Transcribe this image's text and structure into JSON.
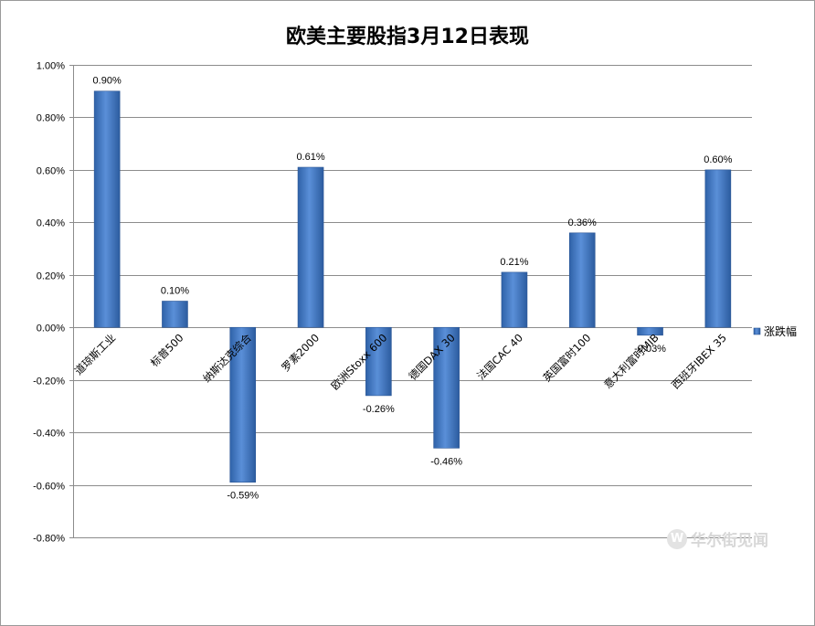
{
  "chart_data": {
    "type": "bar",
    "title": "欧美主要股指3月12日表现",
    "categories": [
      "道琼斯工业",
      "标普500",
      "纳斯达克综合",
      "罗素2000",
      "欧洲Stoxx 600",
      "德国DAX 30",
      "法国CAC 40",
      "英国富时100",
      "意大利富时MIB",
      "西班牙IBEX 35"
    ],
    "series": [
      {
        "name": "涨跌幅",
        "values": [
          0.9,
          0.1,
          -0.59,
          0.61,
          -0.26,
          -0.46,
          0.21,
          0.36,
          -0.03,
          0.6
        ],
        "labels": [
          "0.90%",
          "0.10%",
          "-0.59%",
          "0.61%",
          "-0.26%",
          "-0.46%",
          "0.21%",
          "0.36%",
          "-0.03%",
          "0.60%"
        ]
      }
    ],
    "ylim": [
      -0.8,
      1.0
    ],
    "yticks": [
      1.0,
      0.8,
      0.6,
      0.4,
      0.2,
      0.0,
      -0.2,
      -0.4,
      -0.6,
      -0.8
    ],
    "ytick_labels": [
      "1.00%",
      "0.80%",
      "0.60%",
      "0.40%",
      "0.20%",
      "0.00%",
      "-0.20%",
      "-0.40%",
      "-0.60%",
      "-0.80%"
    ],
    "xlabel": "",
    "ylabel": "",
    "grid": true,
    "legend": "right",
    "bar_color": "#4a7fc8"
  },
  "watermark": {
    "icon": "wallstreetcn-logo-icon",
    "text": "华尔街见闻"
  }
}
